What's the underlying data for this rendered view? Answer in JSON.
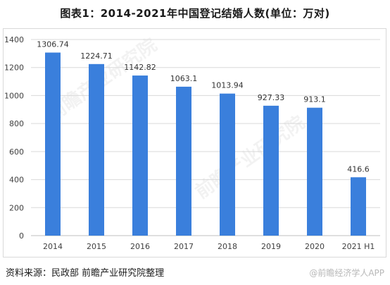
{
  "title": "图表1：2014-2021年中国登记结婚人数(单位：万对)",
  "source": "资料来源：民政部 前瞻产业研究院整理",
  "watermark": {
    "diagonal": "前瞻产业研究院",
    "bottom": "@前瞻经济学人APP"
  },
  "colors": {
    "bar": "#3a7fdc",
    "grid": "#d9d9d9",
    "axis": "#bfbfbf",
    "text": "#404040"
  },
  "chart_data": {
    "type": "bar",
    "categories": [
      "2014",
      "2015",
      "2016",
      "2017",
      "2018",
      "2019",
      "2020",
      "2021 H1"
    ],
    "values": [
      1306.74,
      1224.71,
      1142.82,
      1063.1,
      1013.94,
      927.33,
      913.1,
      416.6
    ],
    "data_labels": [
      "1306.74",
      "1224.71",
      "1142.82",
      "1063.1",
      "1013.94",
      "927.33",
      "913.1",
      "416.6"
    ],
    "title": "图表1：2014-2021年中国登记结婚人数(单位：万对)",
    "xlabel": "",
    "ylabel": "",
    "ylim": [
      0,
      1400
    ],
    "yticks": [
      0,
      200,
      400,
      600,
      800,
      1000,
      1200,
      1400
    ],
    "grid": true,
    "legend": "none"
  }
}
